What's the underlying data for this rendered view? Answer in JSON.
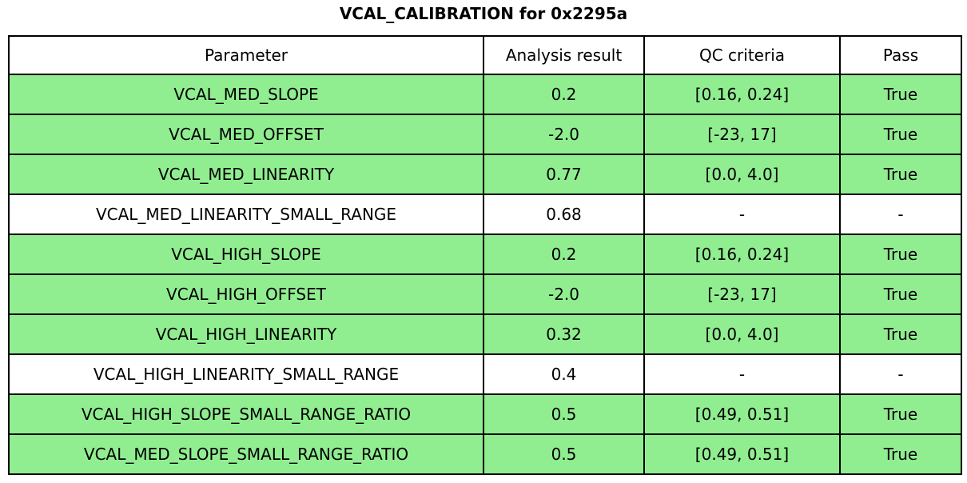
{
  "title": "VCAL_CALIBRATION for 0x2295a",
  "chart_data": {
    "type": "table",
    "title": "VCAL_CALIBRATION for 0x2295a",
    "columns": [
      "Parameter",
      "Analysis result",
      "QC criteria",
      "Pass"
    ],
    "rows": [
      {
        "parameter": "VCAL_MED_SLOPE",
        "result": "0.2",
        "criteria": "[0.16, 0.24]",
        "pass": "True",
        "bg": "pass"
      },
      {
        "parameter": "VCAL_MED_OFFSET",
        "result": "-2.0",
        "criteria": "[-23, 17]",
        "pass": "True",
        "bg": "pass"
      },
      {
        "parameter": "VCAL_MED_LINEARITY",
        "result": "0.77",
        "criteria": "[0.0, 4.0]",
        "pass": "True",
        "bg": "pass"
      },
      {
        "parameter": "VCAL_MED_LINEARITY_SMALL_RANGE",
        "result": "0.68",
        "criteria": "-",
        "pass": "-",
        "bg": "neutral"
      },
      {
        "parameter": "VCAL_HIGH_SLOPE",
        "result": "0.2",
        "criteria": "[0.16, 0.24]",
        "pass": "True",
        "bg": "pass"
      },
      {
        "parameter": "VCAL_HIGH_OFFSET",
        "result": "-2.0",
        "criteria": "[-23, 17]",
        "pass": "True",
        "bg": "pass"
      },
      {
        "parameter": "VCAL_HIGH_LINEARITY",
        "result": "0.32",
        "criteria": "[0.0, 4.0]",
        "pass": "True",
        "bg": "pass"
      },
      {
        "parameter": "VCAL_HIGH_LINEARITY_SMALL_RANGE",
        "result": "0.4",
        "criteria": "-",
        "pass": "-",
        "bg": "neutral"
      },
      {
        "parameter": "VCAL_HIGH_SLOPE_SMALL_RANGE_RATIO",
        "result": "0.5",
        "criteria": "[0.49, 0.51]",
        "pass": "True",
        "bg": "pass"
      },
      {
        "parameter": "VCAL_MED_SLOPE_SMALL_RANGE_RATIO",
        "result": "0.5",
        "criteria": "[0.49, 0.51]",
        "pass": "True",
        "bg": "pass"
      }
    ],
    "colors": {
      "pass": "#90ee90",
      "neutral": "#ffffff",
      "border": "#000000",
      "text": "#000000",
      "header_bg": "#ffffff"
    },
    "layout": {
      "legend": "none",
      "grid": "full-cell-borders"
    }
  }
}
